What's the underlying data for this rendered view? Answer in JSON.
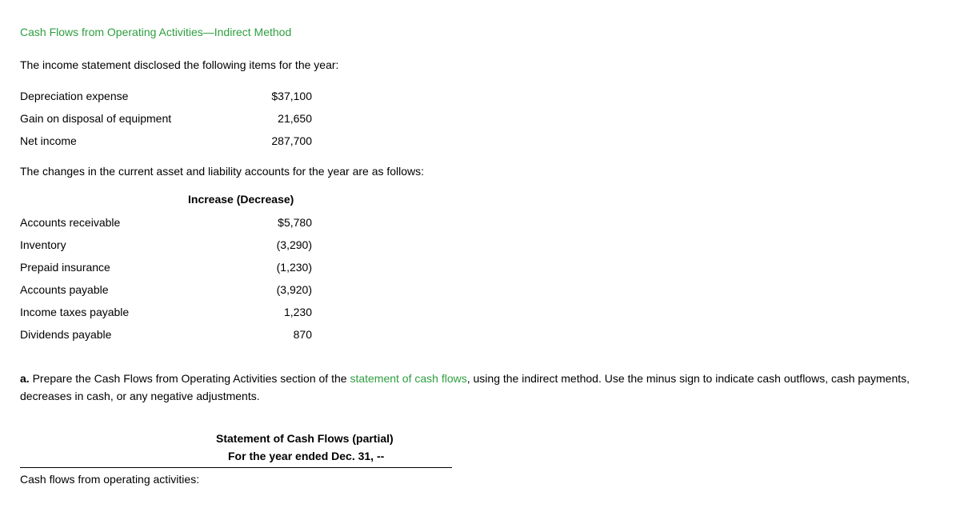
{
  "title": "Cash Flows from Operating Activities—Indirect Method",
  "intro": "The income statement disclosed the following items for the year:",
  "income_items": [
    {
      "label": "Depreciation expense",
      "value": "$37,100"
    },
    {
      "label": "Gain on disposal of equipment",
      "value": "21,650"
    },
    {
      "label": "Net income",
      "value": "287,700"
    }
  ],
  "changes_intro": "The changes in the current asset and liability accounts for the year are as follows:",
  "changes_header": "Increase (Decrease)",
  "changes_items": [
    {
      "label": "Accounts receivable",
      "value": "$5,780"
    },
    {
      "label": "Inventory",
      "value": "(3,290)"
    },
    {
      "label": "Prepaid insurance",
      "value": "(1,230)"
    },
    {
      "label": "Accounts payable",
      "value": "(3,920)"
    },
    {
      "label": "Income taxes payable",
      "value": "1,230"
    },
    {
      "label": "Dividends payable",
      "value": "870"
    }
  ],
  "question": {
    "prefix": "a. ",
    "part1": "Prepare the Cash Flows from Operating Activities section of the ",
    "link": "statement of cash flows",
    "part2": ", using the indirect method. Use the minus sign to indicate cash outflows, cash payments, decreases in cash, or any negative adjustments."
  },
  "statement": {
    "title": "Statement of Cash Flows (partial)",
    "subtitle": "For the year ended Dec. 31, --",
    "section": "Cash flows from operating activities:"
  }
}
